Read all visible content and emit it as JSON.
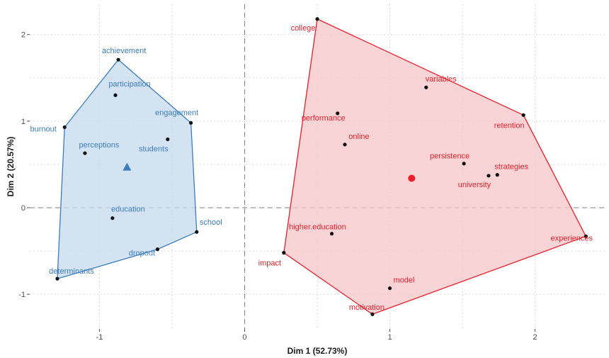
{
  "chart_data": {
    "type": "scatter",
    "xlabel": "Dim 1 (52.73%)",
    "ylabel": "Dim 2 (20.57%)",
    "xlim": [
      -1.48,
      2.48
    ],
    "ylim": [
      -1.4,
      2.35
    ],
    "x_ticks": [
      {
        "value": -1,
        "label": "-1"
      },
      {
        "value": 0,
        "label": "0"
      },
      {
        "value": 1,
        "label": "1"
      },
      {
        "value": 2,
        "label": "2"
      }
    ],
    "y_ticks": [
      {
        "value": -1,
        "label": "-1"
      },
      {
        "value": 0,
        "label": "0"
      },
      {
        "value": 1,
        "label": "1"
      },
      {
        "value": 2,
        "label": "2"
      }
    ],
    "grid": true,
    "reference_lines": {
      "x": 0,
      "y": 0
    },
    "clusters": [
      {
        "color": "#3b7dbf",
        "fill": "#c6d9ed",
        "centroid": {
          "x": -0.81,
          "y": 0.47,
          "shape": "triangle"
        },
        "hull": [
          {
            "x": -0.87,
            "y": 1.71
          },
          {
            "x": -0.37,
            "y": 0.98
          },
          {
            "x": -0.33,
            "y": -0.28
          },
          {
            "x": -0.6,
            "y": -0.48
          },
          {
            "x": -1.29,
            "y": -0.82
          },
          {
            "x": -1.24,
            "y": 0.93
          }
        ],
        "points": [
          {
            "label": "achievement",
            "x": -0.87,
            "y": 1.71
          },
          {
            "label": "participation",
            "x": -0.89,
            "y": 1.3
          },
          {
            "label": "burnout",
            "x": -1.24,
            "y": 0.93
          },
          {
            "label": "engagement",
            "x": -0.37,
            "y": 0.98
          },
          {
            "label": "students",
            "x": -0.53,
            "y": 0.79
          },
          {
            "label": "perceptions",
            "x": -1.1,
            "y": 0.63
          },
          {
            "label": "education",
            "x": -0.91,
            "y": -0.12
          },
          {
            "label": "school",
            "x": -0.33,
            "y": -0.28
          },
          {
            "label": "dropout",
            "x": -0.6,
            "y": -0.48
          },
          {
            "label": "determinants",
            "x": -1.29,
            "y": -0.82
          }
        ]
      },
      {
        "color": "#e8202a",
        "fill": "#f7c6c8",
        "centroid": {
          "x": 1.15,
          "y": 0.34,
          "shape": "circle"
        },
        "hull": [
          {
            "x": 0.5,
            "y": 2.18
          },
          {
            "x": 1.92,
            "y": 1.07
          },
          {
            "x": 2.35,
            "y": -0.33
          },
          {
            "x": 0.88,
            "y": -1.23
          },
          {
            "x": 0.27,
            "y": -0.52
          }
        ],
        "points": [
          {
            "label": "college",
            "x": 0.5,
            "y": 2.18
          },
          {
            "label": "variables",
            "x": 1.25,
            "y": 1.39
          },
          {
            "label": "retention",
            "x": 1.92,
            "y": 1.07
          },
          {
            "label": "performance",
            "x": 0.64,
            "y": 1.09
          },
          {
            "label": "online",
            "x": 0.69,
            "y": 0.73
          },
          {
            "label": "persistence",
            "x": 1.51,
            "y": 0.51
          },
          {
            "label": "strategies",
            "x": 1.74,
            "y": 0.38
          },
          {
            "label": "university",
            "x": 1.68,
            "y": 0.37
          },
          {
            "label": "higher.education",
            "x": 0.6,
            "y": -0.3
          },
          {
            "label": "experiences",
            "x": 2.35,
            "y": -0.33
          },
          {
            "label": "impact",
            "x": 0.27,
            "y": -0.52
          },
          {
            "label": "model",
            "x": 1.0,
            "y": -0.93
          },
          {
            "label": "motivation",
            "x": 0.88,
            "y": -1.23
          }
        ]
      }
    ]
  }
}
